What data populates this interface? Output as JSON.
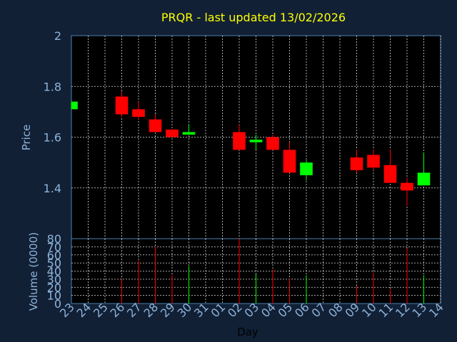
{
  "chart_data": [
    {
      "type": "candlestick",
      "title": "PRQR - last updated 13/02/2026",
      "ylabel": "Price",
      "ylim": [
        1.2,
        2.0
      ],
      "yticks": [
        1.4,
        1.6,
        1.8,
        2
      ],
      "ytick_labels": [
        "1.4",
        "1.6",
        "1.8",
        "2"
      ],
      "x_slots": 22,
      "x_tick_labels": [
        "23",
        "24",
        "25",
        "26",
        "27",
        "28",
        "29",
        "30",
        "31",
        "01",
        "02",
        "03",
        "04",
        "05",
        "06",
        "07",
        "08",
        "09",
        "10",
        "11",
        "12",
        "13",
        "14"
      ],
      "colors": {
        "up": "#00ff00",
        "down": "#ff0000",
        "background": "#000000",
        "frame": "#4a7fb0",
        "title": "#ffff00",
        "label": "#8fb3d9"
      },
      "candles": [
        {
          "day": "23",
          "slot": 0,
          "open": 1.71,
          "high": 1.74,
          "low": 1.71,
          "close": 1.74
        },
        {
          "day": "26",
          "slot": 3,
          "open": 1.76,
          "high": 1.78,
          "low": 1.68,
          "close": 1.69
        },
        {
          "day": "27",
          "slot": 4,
          "open": 1.71,
          "high": 1.74,
          "low": 1.67,
          "close": 1.68
        },
        {
          "day": "28",
          "slot": 5,
          "open": 1.67,
          "high": 1.69,
          "low": 1.62,
          "close": 1.62
        },
        {
          "day": "29",
          "slot": 6,
          "open": 1.63,
          "high": 1.63,
          "low": 1.6,
          "close": 1.6
        },
        {
          "day": "30",
          "slot": 7,
          "open": 1.61,
          "high": 1.65,
          "low": 1.61,
          "close": 1.62
        },
        {
          "day": "02",
          "slot": 10,
          "open": 1.62,
          "high": 1.65,
          "low": 1.55,
          "close": 1.55
        },
        {
          "day": "03",
          "slot": 11,
          "open": 1.58,
          "high": 1.61,
          "low": 1.55,
          "close": 1.59
        },
        {
          "day": "04",
          "slot": 12,
          "open": 1.6,
          "high": 1.61,
          "low": 1.55,
          "close": 1.55
        },
        {
          "day": "05",
          "slot": 13,
          "open": 1.55,
          "high": 1.58,
          "low": 1.46,
          "close": 1.46
        },
        {
          "day": "06",
          "slot": 14,
          "open": 1.45,
          "high": 1.51,
          "low": 1.43,
          "close": 1.5
        },
        {
          "day": "09",
          "slot": 17,
          "open": 1.52,
          "high": 1.55,
          "low": 1.46,
          "close": 1.47
        },
        {
          "day": "10",
          "slot": 18,
          "open": 1.53,
          "high": 1.55,
          "low": 1.47,
          "close": 1.48
        },
        {
          "day": "11",
          "slot": 19,
          "open": 1.49,
          "high": 1.55,
          "low": 1.42,
          "close": 1.42
        },
        {
          "day": "12",
          "slot": 20,
          "open": 1.42,
          "high": 1.44,
          "low": 1.33,
          "close": 1.39
        },
        {
          "day": "13",
          "slot": 21,
          "open": 1.41,
          "high": 1.54,
          "low": 1.41,
          "close": 1.46
        }
      ]
    },
    {
      "type": "bar",
      "ylabel": "Volume (0000)",
      "xlabel": "Day",
      "ylim": [
        0,
        80
      ],
      "yticks": [
        0,
        10,
        20,
        30,
        40,
        50,
        60,
        70,
        80
      ],
      "ytick_labels": [
        "0",
        "10",
        "20",
        "30",
        "40",
        "50",
        "60",
        "70",
        "80"
      ],
      "x_tick_labels": [
        "23",
        "24",
        "25",
        "26",
        "27",
        "28",
        "29",
        "30",
        "31",
        "01",
        "02",
        "03",
        "04",
        "05",
        "06",
        "07",
        "08",
        "09",
        "10",
        "11",
        "12",
        "13",
        "14"
      ],
      "bars": [
        {
          "day": "23",
          "slot": 0,
          "value": 0,
          "dir": "up"
        },
        {
          "day": "26",
          "slot": 3,
          "value": 31,
          "dir": "down"
        },
        {
          "day": "27",
          "slot": 4,
          "value": 53,
          "dir": "down"
        },
        {
          "day": "28",
          "slot": 5,
          "value": 70,
          "dir": "down"
        },
        {
          "day": "29",
          "slot": 6,
          "value": 35,
          "dir": "down"
        },
        {
          "day": "30",
          "slot": 7,
          "value": 46,
          "dir": "up"
        },
        {
          "day": "02",
          "slot": 10,
          "value": 80,
          "dir": "down"
        },
        {
          "day": "03",
          "slot": 11,
          "value": 36,
          "dir": "up"
        },
        {
          "day": "04",
          "slot": 12,
          "value": 42,
          "dir": "down"
        },
        {
          "day": "05",
          "slot": 13,
          "value": 31,
          "dir": "down"
        },
        {
          "day": "06",
          "slot": 14,
          "value": 35,
          "dir": "up"
        },
        {
          "day": "09",
          "slot": 17,
          "value": 22,
          "dir": "down"
        },
        {
          "day": "10",
          "slot": 18,
          "value": 38,
          "dir": "down"
        },
        {
          "day": "11",
          "slot": 19,
          "value": 18,
          "dir": "down"
        },
        {
          "day": "12",
          "slot": 20,
          "value": 68,
          "dir": "down"
        },
        {
          "day": "13",
          "slot": 21,
          "value": 35,
          "dir": "up"
        }
      ]
    }
  ]
}
